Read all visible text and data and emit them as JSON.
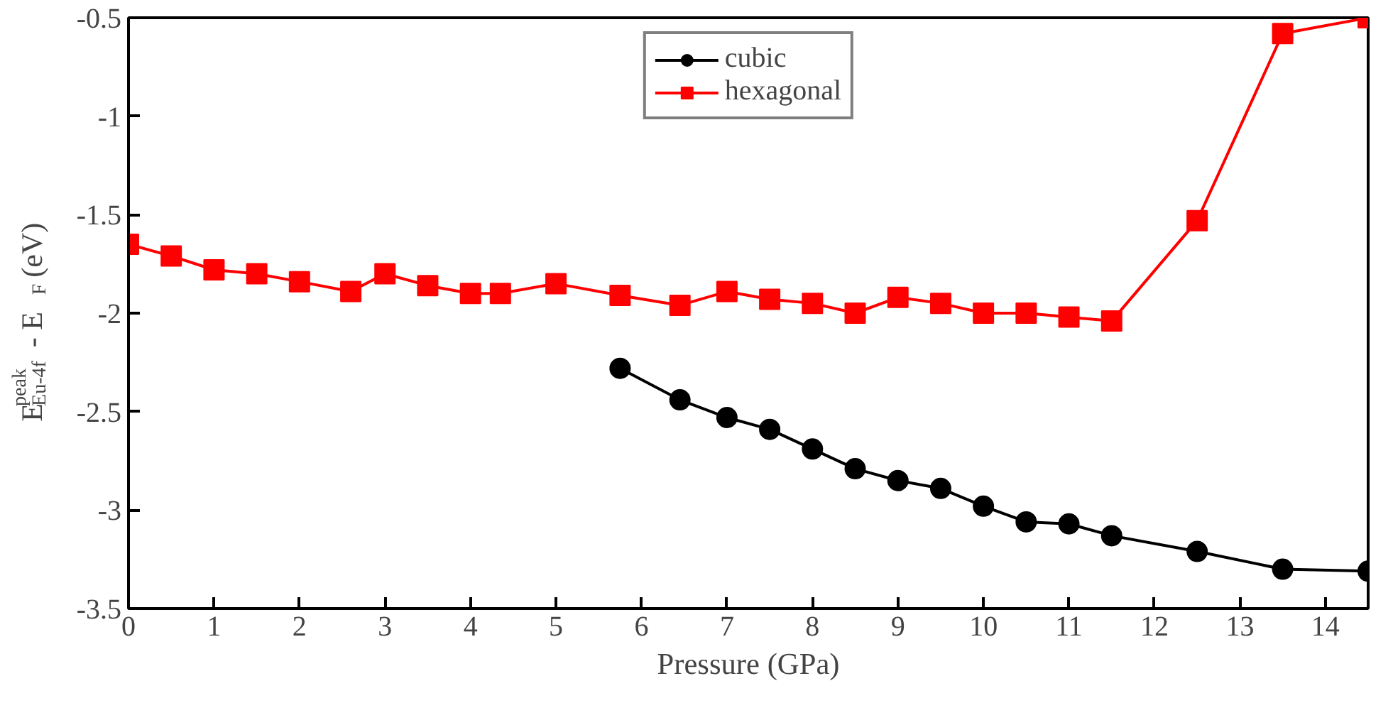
{
  "chart_data": {
    "type": "line",
    "xlabel": "Pressure (GPa)",
    "ylabel": "E$^{peak}$$_{Eu-4f}$ - E$_{F}$ (eV)",
    "xlim": [
      0,
      14.5
    ],
    "xticks": [
      0,
      1,
      2,
      3,
      4,
      5,
      6,
      7,
      8,
      9,
      10,
      11,
      12,
      13,
      14
    ],
    "ylim": [
      -3.5,
      -0.5
    ],
    "yticks": [
      -3.5,
      -3,
      -2.5,
      -2,
      -1.5,
      -1,
      -0.5
    ],
    "grid": false,
    "legend": "top",
    "line_style": "solid",
    "series": [
      {
        "name": "cubic",
        "color": "#000000",
        "marker": "circle",
        "x": [
          5.75,
          6.45,
          7,
          7.5,
          8,
          8.5,
          9,
          9.5,
          10,
          10.5,
          11,
          11.5,
          12.5,
          13.5,
          14.5
        ],
        "values": [
          -2.28,
          -2.44,
          -2.53,
          -2.59,
          -2.69,
          -2.79,
          -2.85,
          -2.89,
          -2.98,
          -3.06,
          -3.07,
          -3.13,
          -3.21,
          -3.3,
          -3.31
        ]
      },
      {
        "name": "hexagonal",
        "color": "#ff0000",
        "marker": "square",
        "x": [
          0,
          0.5,
          1,
          1.5,
          2,
          2.6,
          3,
          3.5,
          4,
          4.35,
          5,
          5.75,
          6.45,
          7,
          7.5,
          8,
          8.5,
          9,
          9.5,
          10,
          10.5,
          11,
          11.5,
          12.5,
          13.5,
          14.5
        ],
        "values": [
          -1.65,
          -1.71,
          -1.78,
          -1.8,
          -1.84,
          -1.89,
          -1.8,
          -1.86,
          -1.9,
          -1.9,
          -1.85,
          -1.91,
          -1.96,
          -1.89,
          -1.93,
          -1.95,
          -2.0,
          -1.92,
          -1.95,
          -2.0,
          -2.0,
          -2.02,
          -2.04,
          -1.53,
          -0.58,
          -0.5
        ]
      }
    ]
  }
}
